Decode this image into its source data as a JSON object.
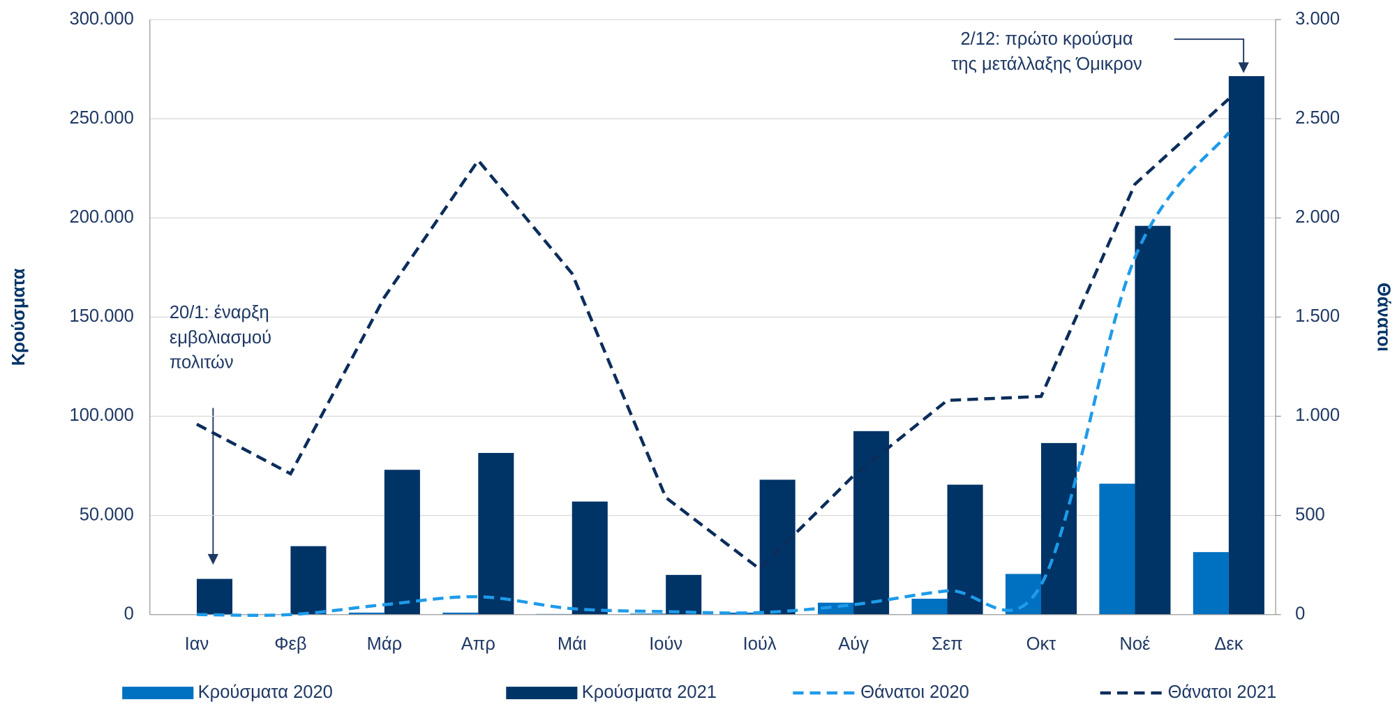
{
  "chart_data": {
    "type": "bar_line",
    "categories": [
      "Ιαν",
      "Φεβ",
      "Μάρ",
      "Απρ",
      "Μάι",
      "Ιούν",
      "Ιούλ",
      "Αύγ",
      "Σεπ",
      "Οκτ",
      "Νοέ",
      "Δεκ"
    ],
    "ylabel": "Κρούσματα",
    "y2label": "Θάνατοι",
    "ylim": [
      0,
      300000
    ],
    "yticks": [
      0,
      {
        "value": 50000,
        "label": "50.000"
      },
      {
        "value": 100000,
        "label": "100.000"
      },
      {
        "value": 150000,
        "label": "150.000"
      },
      {
        "value": 200000,
        "label": "200.000"
      },
      {
        "value": 250000,
        "label": "250.000"
      },
      {
        "value": 300000,
        "label": "300.000"
      }
    ],
    "y2lim": [
      0,
      3000
    ],
    "y2ticks": [
      0,
      500,
      {
        "value": 1000,
        "label": "1.000"
      },
      {
        "value": 1500,
        "label": "1.500"
      },
      {
        "value": 2000,
        "label": "2.000"
      },
      {
        "value": 2500,
        "label": "2.500"
      },
      {
        "value": 3000,
        "label": "3.000"
      }
    ],
    "grid": true,
    "series": [
      {
        "name": "Κρούσματα 2020",
        "type": "bar",
        "color": "#0070c0",
        "values": [
          0,
          0,
          1000,
          1000,
          300,
          500,
          1000,
          6000,
          8000,
          20500,
          66000,
          31500
        ]
      },
      {
        "name": "Κρούσματα 2021",
        "type": "bar",
        "color": "#003366",
        "values": [
          18000,
          34500,
          73000,
          81500,
          57000,
          20000,
          68000,
          92500,
          65500,
          86500,
          196000,
          271500
        ]
      },
      {
        "name": "Θάνατοι 2020",
        "type": "line",
        "axis": "y2",
        "smooth": true,
        "dashed": true,
        "color": "#1e9be9",
        "values": [
          0,
          0,
          50,
          90,
          30,
          15,
          10,
          50,
          120,
          150,
          1800,
          2430
        ]
      },
      {
        "name": "Θάνατοι 2021",
        "type": "line",
        "axis": "y2",
        "smooth": false,
        "dashed": true,
        "color": "#0b2d5b",
        "values": [
          960,
          710,
          1600,
          2290,
          1720,
          590,
          230,
          700,
          1080,
          1100,
          2170,
          2600
        ]
      }
    ],
    "annotations": [
      {
        "lines": [
          "20/1: έναρξη",
          "εμβολιασμού",
          "πολιτών"
        ]
      },
      {
        "lines": [
          "2/12: πρώτο κρούσμα",
          "της μετάλλαξης Όμικρον"
        ]
      }
    ]
  }
}
